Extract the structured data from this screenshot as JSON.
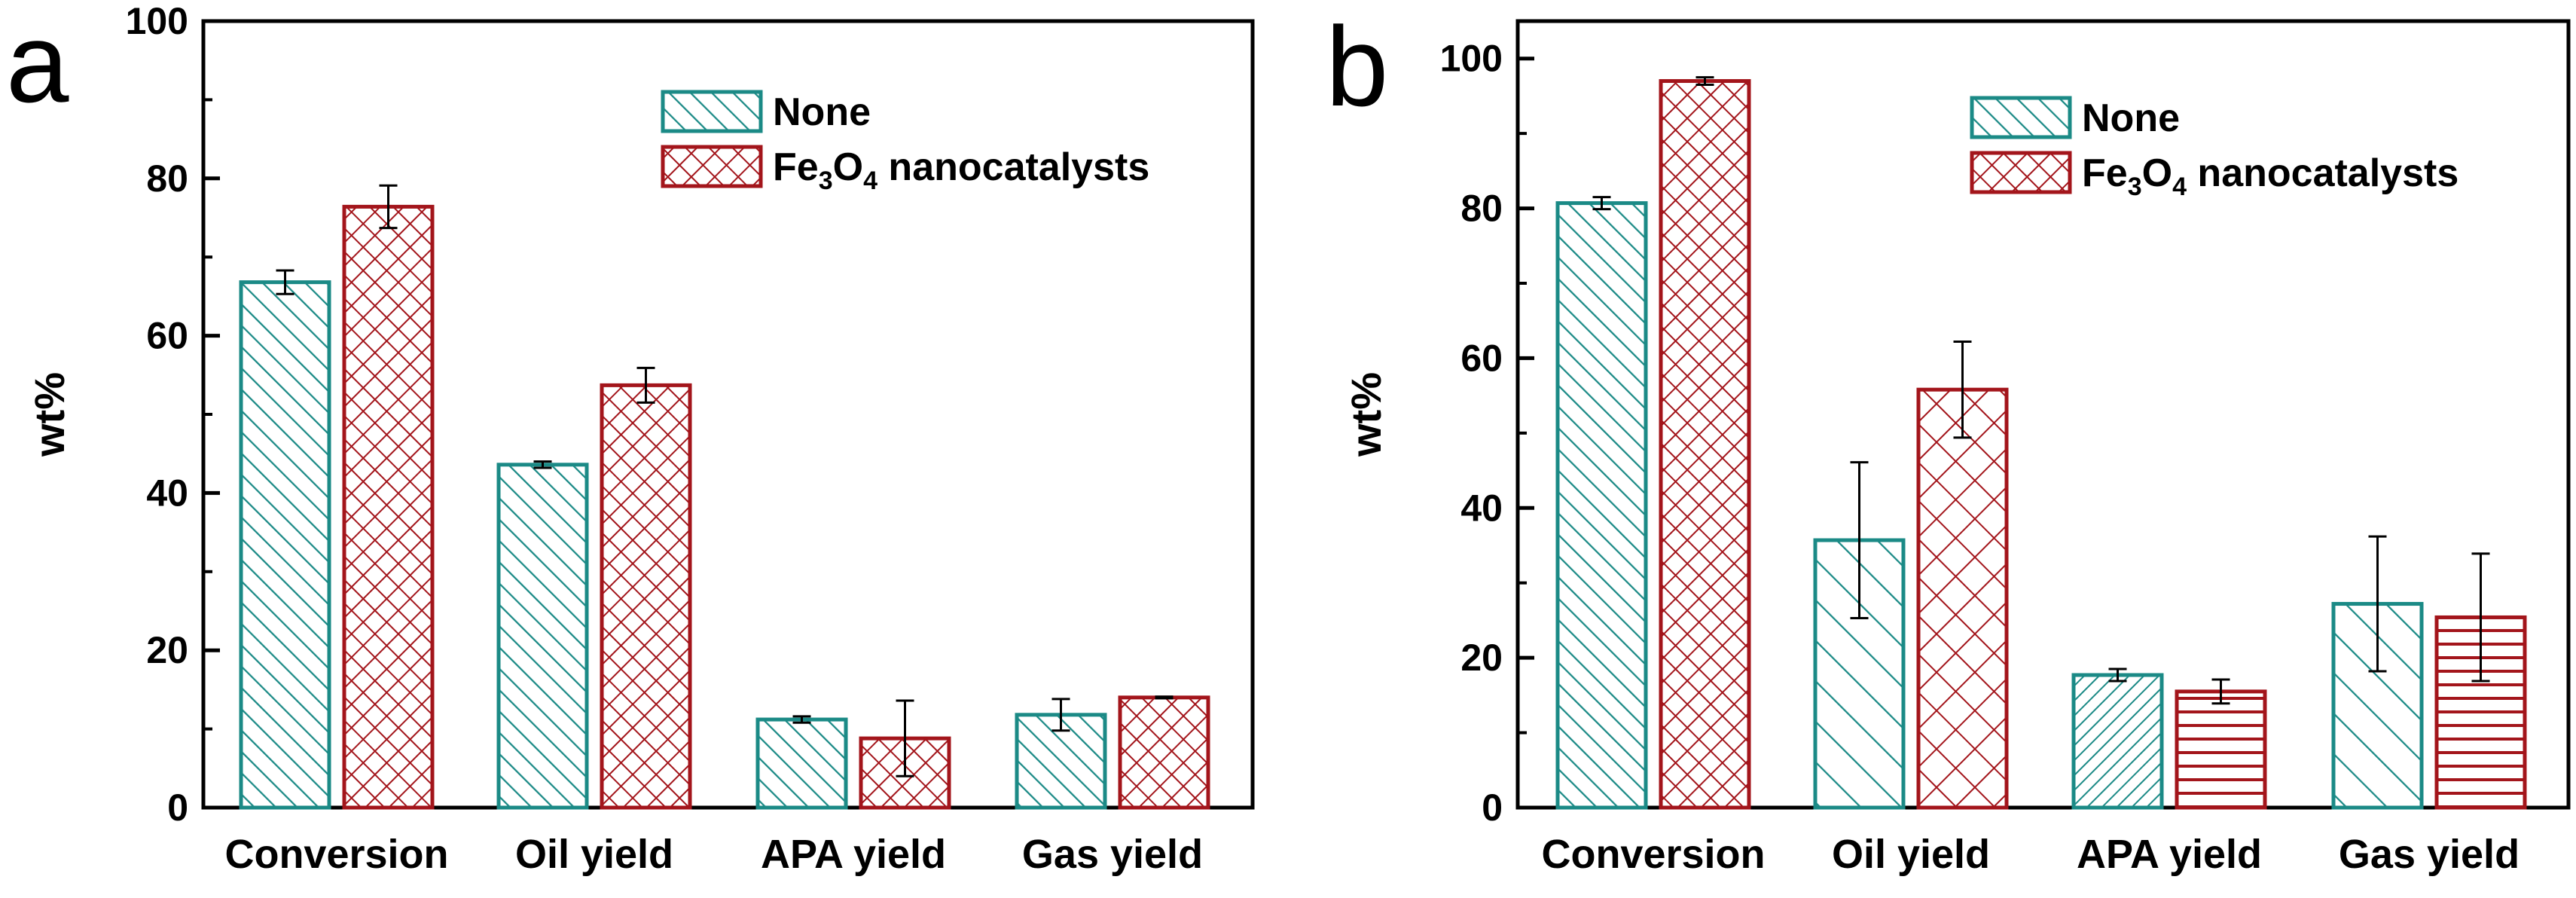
{
  "figure": {
    "colors": {
      "none": "#1b8a86",
      "fe3o4": "#a3151b"
    }
  },
  "chart_data": [
    {
      "panel_label": "a",
      "type": "bar",
      "categories": [
        "Conversion",
        "Oil yield",
        "APA yield",
        "Gas yield"
      ],
      "ylabel": "wt%",
      "ylim": [
        0,
        100
      ],
      "yticks": [
        0,
        20,
        40,
        60,
        80,
        100
      ],
      "grid": false,
      "legend_position": "top-right",
      "series": [
        {
          "name": "None",
          "values": [
            66.8,
            43.6,
            11.2,
            11.8
          ],
          "errors": [
            1.5,
            0.4,
            0.4,
            2.0
          ],
          "pattern": [
            "diag",
            "diag",
            "diag",
            "diag"
          ]
        },
        {
          "name": "Fe3O4 nanocatalysts",
          "name_parts": [
            "Fe",
            "3",
            "O",
            "4",
            " nanocatalysts"
          ],
          "values": [
            76.4,
            53.7,
            8.8,
            14.0
          ],
          "errors": [
            2.7,
            2.2,
            4.8,
            0.1
          ],
          "pattern": [
            "cross",
            "cross",
            "cross",
            "cross"
          ]
        }
      ]
    },
    {
      "panel_label": "b",
      "type": "bar",
      "categories": [
        "Conversion",
        "Oil yield",
        "APA yield",
        "Gas yield"
      ],
      "ylabel": "wt%",
      "ylim": [
        0,
        105
      ],
      "yticks": [
        0,
        20,
        40,
        60,
        80,
        100
      ],
      "grid": false,
      "legend_position": "top-right",
      "series": [
        {
          "name": "None",
          "values": [
            80.7,
            35.7,
            17.7,
            27.2
          ],
          "errors": [
            0.8,
            10.4,
            0.8,
            9.0
          ],
          "pattern": [
            "diag",
            "diag-wide",
            "diag-dense",
            "diag-wide"
          ]
        },
        {
          "name": "Fe3O4 nanocatalysts",
          "name_parts": [
            "Fe",
            "3",
            "O",
            "4",
            " nanocatalysts"
          ],
          "values": [
            97.0,
            55.8,
            15.5,
            25.4
          ],
          "errors": [
            0.5,
            6.4,
            1.6,
            8.5
          ],
          "pattern": [
            "cross",
            "cross-wide",
            "hlines",
            "hlines"
          ]
        }
      ]
    }
  ]
}
